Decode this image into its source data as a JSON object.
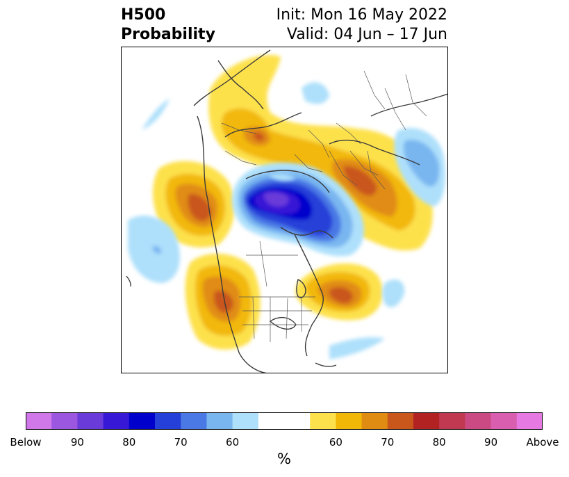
{
  "title": {
    "left_line1": "H500",
    "left_line2": "Probability",
    "right_line1": "Init: Mon 16 May 2022",
    "right_line2": "Valid: 04 Jun – 17 Jun"
  },
  "map": {
    "projection": "north polar stereographic",
    "field": "500 hPa height probability anomaly",
    "below_color_scale": [
      "#aee0fb",
      "#79b6f0",
      "#4a78e5",
      "#2540d8",
      "#0000cc",
      "#3718d6",
      "#6b3bd9",
      "#9b57e0",
      "#d078ea"
    ],
    "above_color_scale": [
      "#fde14c",
      "#f2b807",
      "#e08c12",
      "#c9561a",
      "#b22222",
      "#c03950",
      "#cc4a83",
      "#da5eaf",
      "#e77ae2"
    ]
  },
  "colorbar": {
    "colors": [
      "#d078ea",
      "#9b57e0",
      "#6b3bd9",
      "#3718d6",
      "#0000cc",
      "#2540d8",
      "#4a78e5",
      "#79b6f0",
      "#aee0fb",
      "#ffffff",
      "#fde14c",
      "#f2b807",
      "#e08c12",
      "#c9561a",
      "#b22222",
      "#c03950",
      "#cc4a83",
      "#da5eaf",
      "#e77ae2"
    ],
    "tick_labels": [
      "Below",
      "90",
      "80",
      "70",
      "60",
      "60",
      "70",
      "80",
      "90",
      "Above"
    ],
    "unit_label": "%"
  }
}
